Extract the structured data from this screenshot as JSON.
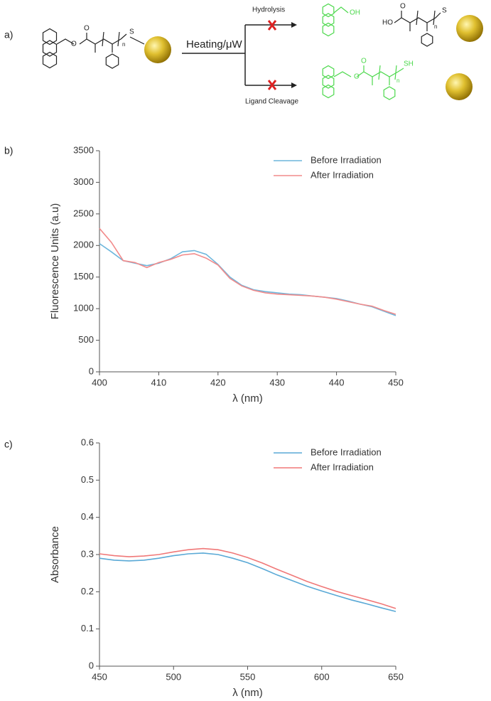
{
  "scheme": {
    "panel_label": "a)",
    "arrow_label": "Heating/μW",
    "upper_path": "Hydrolysis",
    "lower_path": "Ligand Cleavage",
    "atom_labels": [
      "O",
      "O",
      "S",
      "n",
      "OH",
      "HO",
      "O",
      "S",
      "n",
      "O",
      "O",
      "SH",
      "n"
    ]
  },
  "chart_data": [
    {
      "type": "line",
      "panel_label": "b)",
      "x_label": "λ  (nm)",
      "y_label": "Fluorescence Units (a.u)",
      "x": [
        400,
        402,
        404,
        406,
        408,
        410,
        412,
        414,
        416,
        418,
        420,
        422,
        424,
        426,
        428,
        430,
        432,
        434,
        436,
        438,
        440,
        442,
        444,
        446,
        448,
        450
      ],
      "series": [
        {
          "name": "Before Irradiation",
          "color": "#6db6dc",
          "values": [
            2030,
            1900,
            1760,
            1720,
            1680,
            1720,
            1790,
            1900,
            1920,
            1860,
            1700,
            1500,
            1370,
            1300,
            1270,
            1250,
            1230,
            1220,
            1200,
            1180,
            1160,
            1120,
            1070,
            1030,
            960,
            890
          ]
        },
        {
          "name": "After Irradiation",
          "color": "#f28b8b",
          "values": [
            2270,
            2050,
            1760,
            1730,
            1650,
            1730,
            1780,
            1850,
            1870,
            1800,
            1690,
            1480,
            1360,
            1290,
            1250,
            1230,
            1220,
            1210,
            1200,
            1180,
            1150,
            1110,
            1070,
            1040,
            970,
            910
          ]
        }
      ],
      "xlim": [
        400,
        450
      ],
      "xticks": [
        400,
        410,
        420,
        430,
        440,
        450
      ],
      "ylim": [
        0,
        3500
      ],
      "yticks": [
        0,
        500,
        1000,
        1500,
        2000,
        2500,
        3000,
        3500
      ],
      "legend": "upper right"
    },
    {
      "type": "line",
      "panel_label": "c)",
      "x_label": "λ (nm)",
      "y_label": "Absorbance",
      "x": [
        450,
        460,
        470,
        480,
        490,
        500,
        510,
        520,
        530,
        540,
        550,
        560,
        570,
        580,
        590,
        600,
        610,
        620,
        630,
        640,
        650
      ],
      "series": [
        {
          "name": "Before Irradiation",
          "color": "#5aa9d6",
          "values": [
            0.29,
            0.285,
            0.283,
            0.285,
            0.29,
            0.297,
            0.302,
            0.304,
            0.3,
            0.29,
            0.278,
            0.262,
            0.245,
            0.23,
            0.215,
            0.202,
            0.19,
            0.178,
            0.168,
            0.157,
            0.147
          ]
        },
        {
          "name": "After Irradiation",
          "color": "#f07878",
          "values": [
            0.302,
            0.297,
            0.294,
            0.296,
            0.3,
            0.307,
            0.313,
            0.316,
            0.313,
            0.304,
            0.292,
            0.277,
            0.26,
            0.244,
            0.228,
            0.214,
            0.201,
            0.19,
            0.179,
            0.168,
            0.155
          ]
        }
      ],
      "xlim": [
        450,
        650
      ],
      "xticks": [
        450,
        500,
        550,
        600,
        650
      ],
      "ylim": [
        0,
        0.6
      ],
      "yticks": [
        0,
        0.1,
        0.2,
        0.3,
        0.4,
        0.5,
        0.6
      ],
      "legend": "upper right"
    }
  ]
}
